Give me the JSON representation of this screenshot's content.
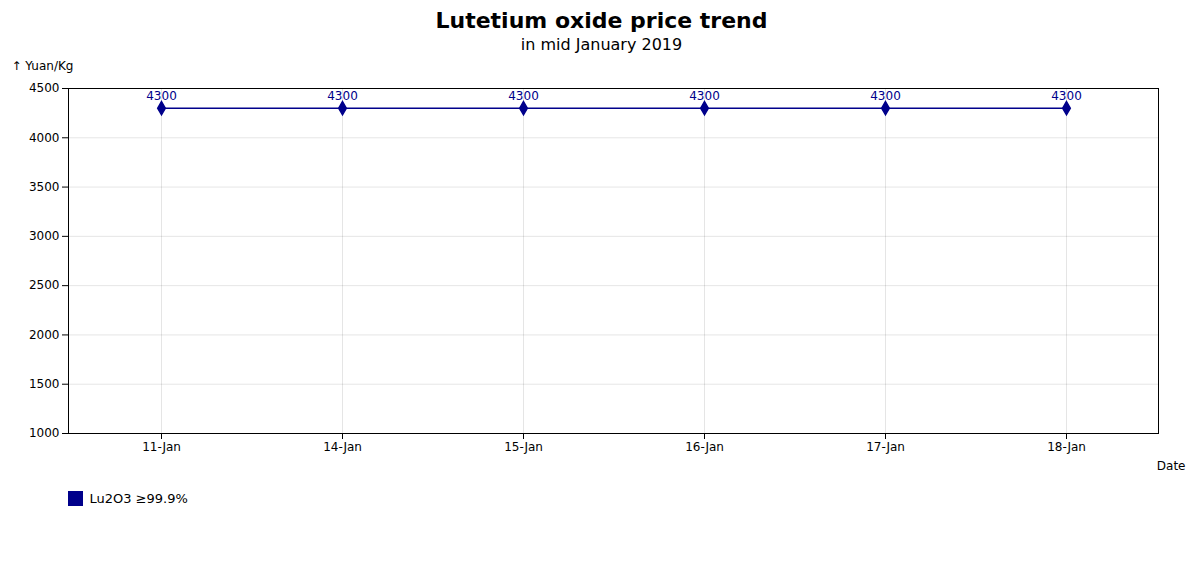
{
  "chart_data": {
    "type": "line",
    "title": "Lutetium oxide price trend",
    "subtitle": "in mid January 2019",
    "x_label": "Date",
    "y_label": "Yuan/Kg",
    "categories": [
      "11-Jan",
      "14-Jan",
      "15-Jan",
      "16-Jan",
      "17-Jan",
      "18-Jan"
    ],
    "series": [
      {
        "name": "Lu2O3  ≥99.9%",
        "color": "#00008b",
        "marker": "diamond",
        "values": [
          4300,
          4300,
          4300,
          4300,
          4300,
          4300
        ]
      }
    ],
    "ylim": [
      1000,
      4500
    ],
    "yticks": [
      1000,
      1500,
      2000,
      2500,
      3000,
      3500,
      4000,
      4500
    ],
    "grid": true,
    "data_labels": true
  }
}
